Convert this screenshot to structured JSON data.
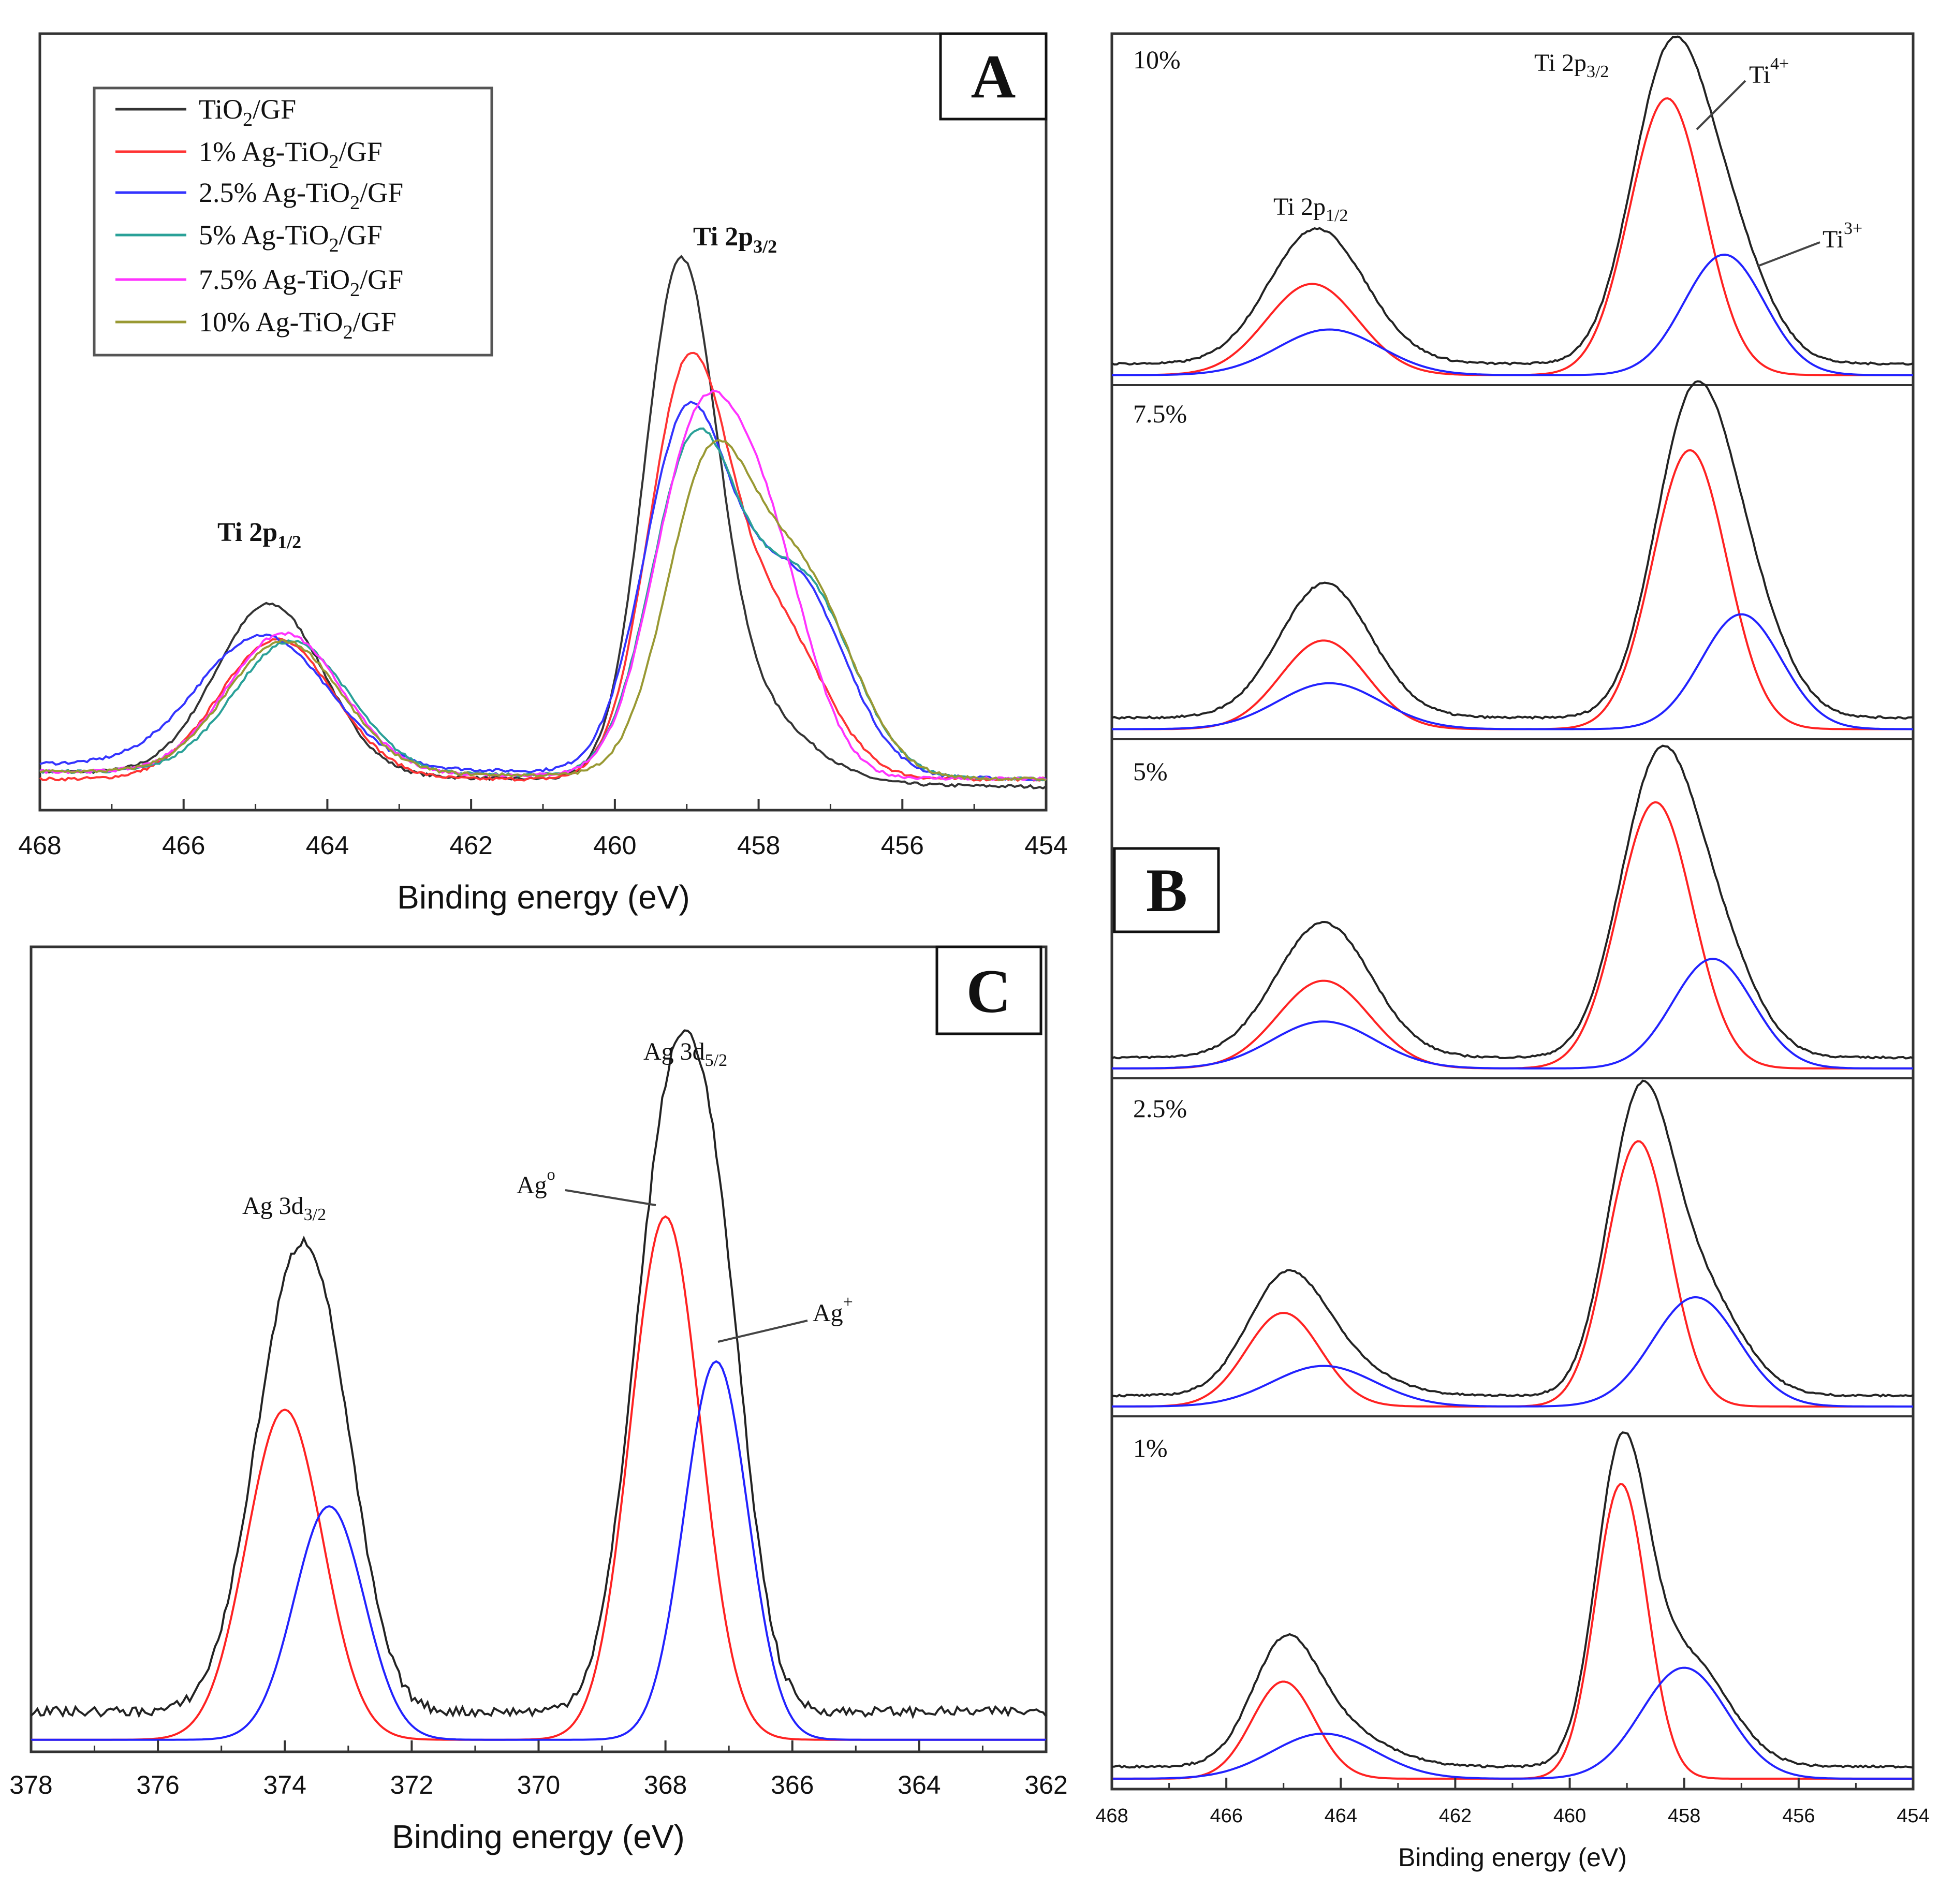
{
  "chart_data": [
    {
      "id": "A",
      "type": "line",
      "panel_label": "A",
      "xlabel": "Binding energy (eV)",
      "xlim": [
        468,
        454
      ],
      "ylim": [
        0,
        1
      ],
      "xticks": [
        "468",
        "466",
        "464",
        "462",
        "460",
        "458",
        "456",
        "454"
      ],
      "annotations": {
        "p12": "Ti 2p",
        "p12_sub": "1/2",
        "p32": "Ti 2p",
        "p32_sub": "3/2"
      },
      "legend_position": "top-left",
      "series": [
        {
          "name": "TiO2/GF",
          "label_main": "TiO",
          "label_sub": "2",
          "label_tail": "/GF",
          "color": "#333333",
          "baseline": [
            0.05,
            0.03
          ],
          "peaks": [
            [
              464.8,
              0.22,
              0.75
            ],
            [
              459.1,
              0.62,
              0.5
            ],
            [
              458.2,
              0.1,
              0.8
            ]
          ]
        },
        {
          "name": "1% Ag-TiO2/GF",
          "label_main": "1% Ag-TiO",
          "label_sub": "2",
          "label_tail": "/GF",
          "color": "#ff3333",
          "baseline": [
            0.04,
            0.04
          ],
          "peaks": [
            [
              464.7,
              0.18,
              0.8
            ],
            [
              459.0,
              0.5,
              0.55
            ],
            [
              457.8,
              0.2,
              0.7
            ]
          ]
        },
        {
          "name": "2.5% Ag-TiO2/GF",
          "label_main": "2.5% Ag-TiO",
          "label_sub": "2",
          "label_tail": "/GF",
          "color": "#3333ff",
          "baseline": [
            0.06,
            0.04
          ],
          "peaks": [
            [
              464.9,
              0.17,
              0.9
            ],
            [
              459.0,
              0.45,
              0.6
            ],
            [
              457.5,
              0.25,
              0.7
            ]
          ]
        },
        {
          "name": "5% Ag-TiO2/GF",
          "label_main": "5% Ag-TiO",
          "label_sub": "2",
          "label_tail": "/GF",
          "color": "#2aa198",
          "baseline": [
            0.05,
            0.04
          ],
          "peaks": [
            [
              464.5,
              0.17,
              0.8
            ],
            [
              458.9,
              0.42,
              0.6
            ],
            [
              457.4,
              0.25,
              0.7
            ]
          ]
        },
        {
          "name": "7.5% Ag-TiO2/GF",
          "label_main": "7.5% Ag-TiO",
          "label_sub": "2",
          "label_tail": "/GF",
          "color": "#ff33ff",
          "baseline": [
            0.05,
            0.04
          ],
          "peaks": [
            [
              464.6,
              0.18,
              0.8
            ],
            [
              458.9,
              0.4,
              0.6
            ],
            [
              457.9,
              0.28,
              0.6
            ]
          ]
        },
        {
          "name": "10% Ag-TiO2/GF",
          "label_main": "10% Ag-TiO",
          "label_sub": "2",
          "label_tail": "/GF",
          "color": "#999933",
          "baseline": [
            0.05,
            0.04
          ],
          "peaks": [
            [
              464.6,
              0.17,
              0.8
            ],
            [
              458.7,
              0.38,
              0.6
            ],
            [
              457.4,
              0.25,
              0.7
            ]
          ]
        }
      ]
    },
    {
      "id": "B",
      "type": "line",
      "panel_label": "B",
      "xlabel": "Binding energy (eV)",
      "xlim": [
        468,
        454
      ],
      "ylim": [
        0,
        1
      ],
      "xticks": [
        "468",
        "466",
        "464",
        "462",
        "460",
        "458",
        "456",
        "454"
      ],
      "annotations": {
        "p12": "Ti 2p",
        "p12_sub": "1/2",
        "p32": "Ti 2p",
        "p32_sub": "3/2",
        "ti4": "Ti",
        "ti4_sup": "4+",
        "ti3": "Ti",
        "ti3_sup": "3+"
      },
      "component_colors": {
        "envelope": "#222222",
        "Ti4+": "#ff2222",
        "Ti3+": "#2222ff"
      },
      "subpanels": [
        {
          "label": "10%",
          "baseline": 0.05,
          "ti4": [
            [
              458.3,
              0.85,
              0.65
            ],
            [
              464.5,
              0.28,
              0.8
            ]
          ],
          "ti3": [
            [
              457.3,
              0.37,
              0.7
            ],
            [
              464.2,
              0.14,
              0.9
            ]
          ]
        },
        {
          "label": "7.5%",
          "baseline": 0.05,
          "ti4": [
            [
              457.9,
              0.85,
              0.65
            ],
            [
              464.3,
              0.27,
              0.75
            ]
          ],
          "ti3": [
            [
              457.0,
              0.35,
              0.7
            ],
            [
              464.2,
              0.14,
              0.9
            ]
          ]
        },
        {
          "label": "5%",
          "baseline": 0.05,
          "ti4": [
            [
              458.5,
              0.85,
              0.65
            ],
            [
              464.3,
              0.28,
              0.8
            ]
          ],
          "ti3": [
            [
              457.5,
              0.35,
              0.7
            ],
            [
              464.3,
              0.15,
              0.9
            ]
          ]
        },
        {
          "label": "2.5%",
          "baseline": 0.05,
          "ti4": [
            [
              458.8,
              0.85,
              0.55
            ],
            [
              465.0,
              0.3,
              0.65
            ]
          ],
          "ti3": [
            [
              457.8,
              0.35,
              0.75
            ],
            [
              464.3,
              0.13,
              0.9
            ]
          ]
        },
        {
          "label": "1%",
          "baseline": 0.05,
          "ti4": [
            [
              459.1,
              0.85,
              0.45
            ],
            [
              465.0,
              0.28,
              0.55
            ]
          ],
          "ti3": [
            [
              458.0,
              0.32,
              0.75
            ],
            [
              464.3,
              0.13,
              0.9
            ]
          ]
        }
      ]
    },
    {
      "id": "C",
      "type": "line",
      "panel_label": "C",
      "xlabel": "Binding energy (eV)",
      "xlim": [
        378,
        362
      ],
      "ylim": [
        0,
        1
      ],
      "xticks": [
        "378",
        "376",
        "374",
        "372",
        "370",
        "368",
        "366",
        "364",
        "362"
      ],
      "annotations": {
        "p32": "Ag 3d",
        "p32_sub": "3/2",
        "p52": "Ag 3d",
        "p52_sub": "5/2",
        "ag0": "Ag",
        "ag0_sup": "o",
        "agp": "Ag",
        "agp_sup": "+"
      },
      "component_colors": {
        "envelope": "#222222",
        "Ag0": "#ff2222",
        "Ag+": "#2222ff"
      },
      "baseline": 0.03,
      "ag0": [
        [
          374.0,
          0.41,
          0.6
        ],
        [
          368.0,
          0.65,
          0.55
        ]
      ],
      "agp": [
        [
          373.3,
          0.29,
          0.55
        ],
        [
          367.2,
          0.47,
          0.5
        ]
      ]
    }
  ]
}
